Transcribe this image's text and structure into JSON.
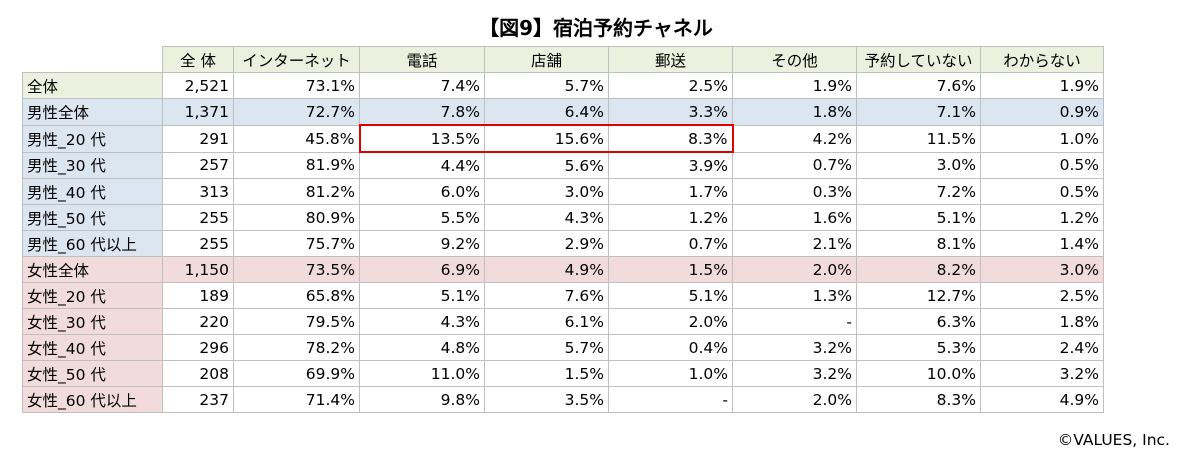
{
  "chart_data": {
    "type": "table",
    "title": "【図9】宿泊予約チャネル",
    "columns": [
      "全 体",
      "インターネット",
      "電話",
      "店舗",
      "郵送",
      "その他",
      "予約していない",
      "わからない"
    ],
    "rows": [
      {
        "label": "全体",
        "group": "total",
        "values": [
          "2,521",
          "73.1%",
          "7.4%",
          "5.7%",
          "2.5%",
          "1.9%",
          "7.6%",
          "1.9%"
        ]
      },
      {
        "label": "男性全体",
        "group": "male",
        "values": [
          "1,371",
          "72.7%",
          "7.8%",
          "6.4%",
          "3.3%",
          "1.8%",
          "7.1%",
          "0.9%"
        ]
      },
      {
        "label": "男性_20 代",
        "group": "male",
        "values": [
          "291",
          "45.8%",
          "13.5%",
          "15.6%",
          "8.3%",
          "4.2%",
          "11.5%",
          "1.0%"
        ]
      },
      {
        "label": "男性_30 代",
        "group": "male",
        "values": [
          "257",
          "81.9%",
          "4.4%",
          "5.6%",
          "3.9%",
          "0.7%",
          "3.0%",
          "0.5%"
        ]
      },
      {
        "label": "男性_40 代",
        "group": "male",
        "values": [
          "313",
          "81.2%",
          "6.0%",
          "3.0%",
          "1.7%",
          "0.3%",
          "7.2%",
          "0.5%"
        ]
      },
      {
        "label": "男性_50 代",
        "group": "male",
        "values": [
          "255",
          "80.9%",
          "5.5%",
          "4.3%",
          "1.2%",
          "1.6%",
          "5.1%",
          "1.2%"
        ]
      },
      {
        "label": "男性_60 代以上",
        "group": "male",
        "values": [
          "255",
          "75.7%",
          "9.2%",
          "2.9%",
          "0.7%",
          "2.1%",
          "8.1%",
          "1.4%"
        ]
      },
      {
        "label": "女性全体",
        "group": "female",
        "values": [
          "1,150",
          "73.5%",
          "6.9%",
          "4.9%",
          "1.5%",
          "2.0%",
          "8.2%",
          "3.0%"
        ]
      },
      {
        "label": "女性_20 代",
        "group": "female",
        "values": [
          "189",
          "65.8%",
          "5.1%",
          "7.6%",
          "5.1%",
          "1.3%",
          "12.7%",
          "2.5%"
        ]
      },
      {
        "label": "女性_30 代",
        "group": "female",
        "values": [
          "220",
          "79.5%",
          "4.3%",
          "6.1%",
          "2.0%",
          "-",
          "6.3%",
          "1.8%"
        ]
      },
      {
        "label": "女性_40 代",
        "group": "female",
        "values": [
          "296",
          "78.2%",
          "4.8%",
          "5.7%",
          "0.4%",
          "3.2%",
          "5.3%",
          "2.4%"
        ]
      },
      {
        "label": "女性_50 代",
        "group": "female",
        "values": [
          "208",
          "69.9%",
          "11.0%",
          "1.5%",
          "1.0%",
          "3.2%",
          "10.0%",
          "3.2%"
        ]
      },
      {
        "label": "女性_60 代以上",
        "group": "female",
        "values": [
          "237",
          "71.4%",
          "9.8%",
          "3.5%",
          "-",
          "2.0%",
          "8.3%",
          "4.9%"
        ]
      }
    ],
    "highlight": {
      "row": 2,
      "columns": [
        2,
        3,
        4
      ],
      "color": "#e00000"
    },
    "colors": {
      "header_bg": "#ebf1de",
      "total_label_bg": "#ebf1de",
      "male_label_bg": "#dce6f1",
      "male_total_row_bg": "#dce6f1",
      "female_label_bg": "#f2dcdb",
      "female_total_row_bg": "#f2dcdb"
    }
  },
  "footer": {
    "copyright": "©VALUES, Inc."
  }
}
